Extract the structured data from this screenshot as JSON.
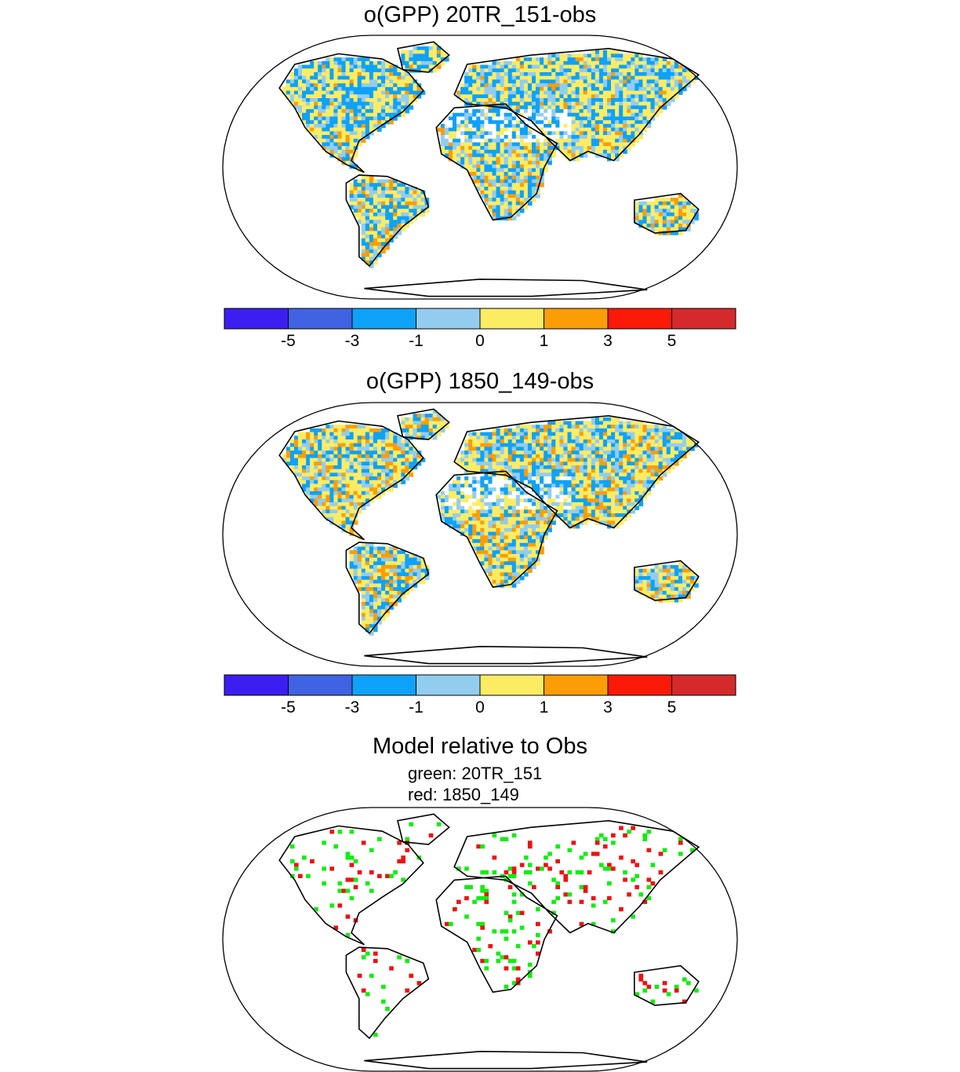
{
  "panels": [
    {
      "title": "o(GPP) 20TR_151-obs",
      "type": "difference-map"
    },
    {
      "title": "o(GPP) 1850_149-obs",
      "type": "difference-map"
    },
    {
      "title": "Model relative to Obs",
      "type": "comparison-map",
      "legend": [
        "green: 20TR_151",
        "red: 1850_149"
      ]
    }
  ],
  "colorbar": {
    "colors": [
      "#3d1ef0",
      "#3f63e2",
      "#0ea2f8",
      "#92cdef",
      "#fcec63",
      "#fb9d06",
      "#fa1a07",
      "#d42a2c"
    ],
    "labels": [
      "-5",
      "-3",
      "-1",
      "0",
      "1",
      "3",
      "5"
    ]
  },
  "comparison_colors": {
    "model_a": "#11ee11",
    "model_b": "#ee1111"
  }
}
